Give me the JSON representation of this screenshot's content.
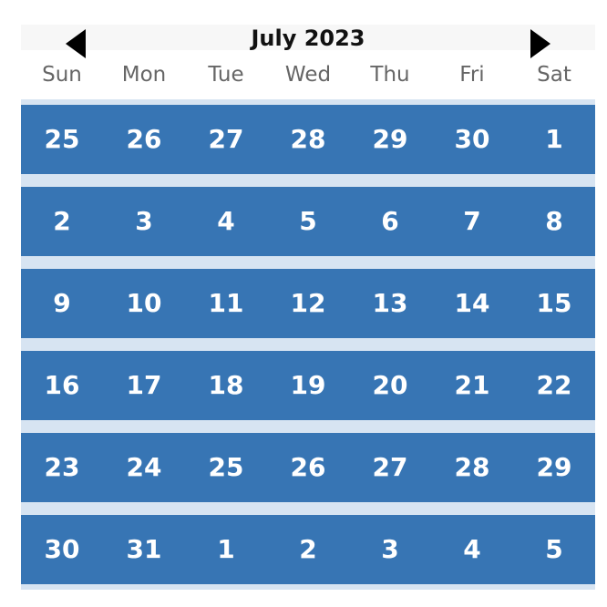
{
  "calendar": {
    "month_label": "July 2023",
    "prev_icon": "triangle-left-icon",
    "next_icon": "triangle-right-icon",
    "weekdays": [
      "Sun",
      "Mon",
      "Tue",
      "Wed",
      "Thu",
      "Fri",
      "Sat"
    ],
    "weeks": [
      [
        "25",
        "26",
        "27",
        "28",
        "29",
        "30",
        "1"
      ],
      [
        "2",
        "3",
        "4",
        "5",
        "6",
        "7",
        "8"
      ],
      [
        "9",
        "10",
        "11",
        "12",
        "13",
        "14",
        "15"
      ],
      [
        "16",
        "17",
        "18",
        "19",
        "20",
        "21",
        "22"
      ],
      [
        "23",
        "24",
        "25",
        "26",
        "27",
        "28",
        "29"
      ],
      [
        "30",
        "31",
        "1",
        "2",
        "3",
        "4",
        "5"
      ]
    ],
    "colors": {
      "header_bg": "#f7f7f7",
      "week_row_bg": "#3775b4",
      "grid_gap_bg": "#d7e4f2",
      "day_text": "#ffffff",
      "weekday_text": "#666666",
      "title_text": "#111111"
    }
  }
}
